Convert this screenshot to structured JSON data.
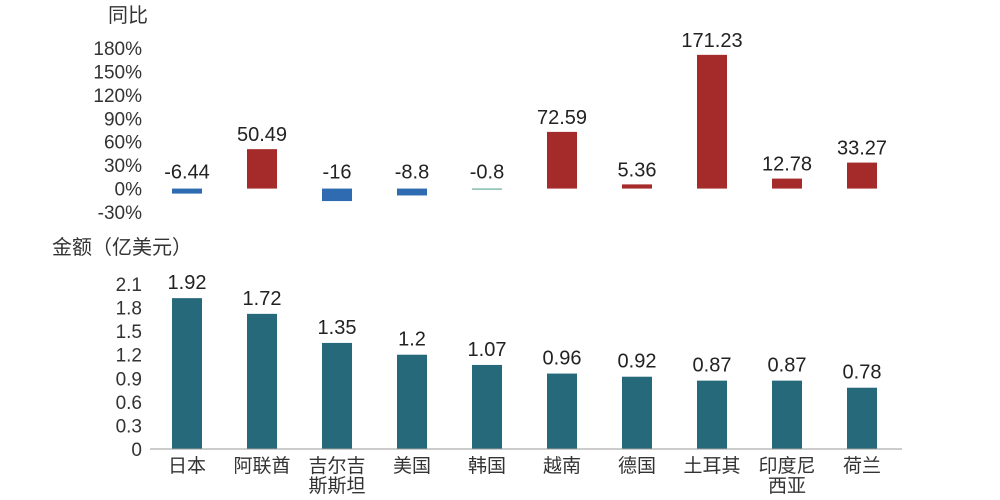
{
  "chart_data": [
    {
      "type": "bar",
      "ylabel": "同比",
      "ylim": [
        -30,
        180
      ],
      "yticks": [
        "180%",
        "150%",
        "120%",
        "90%",
        "60%",
        "30%",
        "0%",
        "-30%"
      ],
      "ytick_values": [
        180,
        150,
        120,
        90,
        60,
        30,
        0,
        -30
      ],
      "categories": [
        "日本",
        "阿联酋",
        "吉尔吉斯斯坦",
        "美国",
        "韩国",
        "越南",
        "德国",
        "土耳其",
        "印度尼西亚",
        "荷兰"
      ],
      "values": [
        -6.44,
        50.49,
        -16,
        -8.8,
        -0.8,
        72.59,
        5.36,
        171.23,
        12.78,
        33.27
      ],
      "data_labels": [
        "-6.44",
        "50.49",
        "-16",
        "-8.8",
        "-0.8",
        "72.59",
        "5.36",
        "171.23",
        "12.78",
        "33.27"
      ],
      "colors": {
        "positive": "#a52a2a",
        "negative": "#2e6bb0",
        "near_zero": "#4a9a8a"
      },
      "grid": false
    },
    {
      "type": "bar",
      "ylabel": "金额（亿美元）",
      "ylim": [
        0,
        2.1
      ],
      "yticks": [
        "2.1",
        "1.8",
        "1.5",
        "1.2",
        "0.9",
        "0.6",
        "0.3",
        "0"
      ],
      "ytick_values": [
        2.1,
        1.8,
        1.5,
        1.2,
        0.9,
        0.6,
        0.3,
        0
      ],
      "categories": [
        "日本",
        "阿联酋",
        "吉尔吉斯斯坦",
        "美国",
        "韩国",
        "越南",
        "德国",
        "土耳其",
        "印度尼西亚",
        "荷兰"
      ],
      "category_lines": [
        [
          "日本"
        ],
        [
          "阿联酋"
        ],
        [
          "吉尔吉",
          "斯斯坦"
        ],
        [
          "美国"
        ],
        [
          "韩国"
        ],
        [
          "越南"
        ],
        [
          "德国"
        ],
        [
          "土耳其"
        ],
        [
          "印度尼",
          "西亚"
        ],
        [
          "荷兰"
        ]
      ],
      "values": [
        1.92,
        1.72,
        1.35,
        1.2,
        1.07,
        0.96,
        0.92,
        0.87,
        0.87,
        0.78
      ],
      "data_labels": [
        "1.92",
        "1.72",
        "1.35",
        "1.2",
        "1.07",
        "0.96",
        "0.92",
        "0.87",
        "0.87",
        "0.78"
      ],
      "colors": {
        "bar": "#25697a"
      },
      "grid": false
    }
  ]
}
